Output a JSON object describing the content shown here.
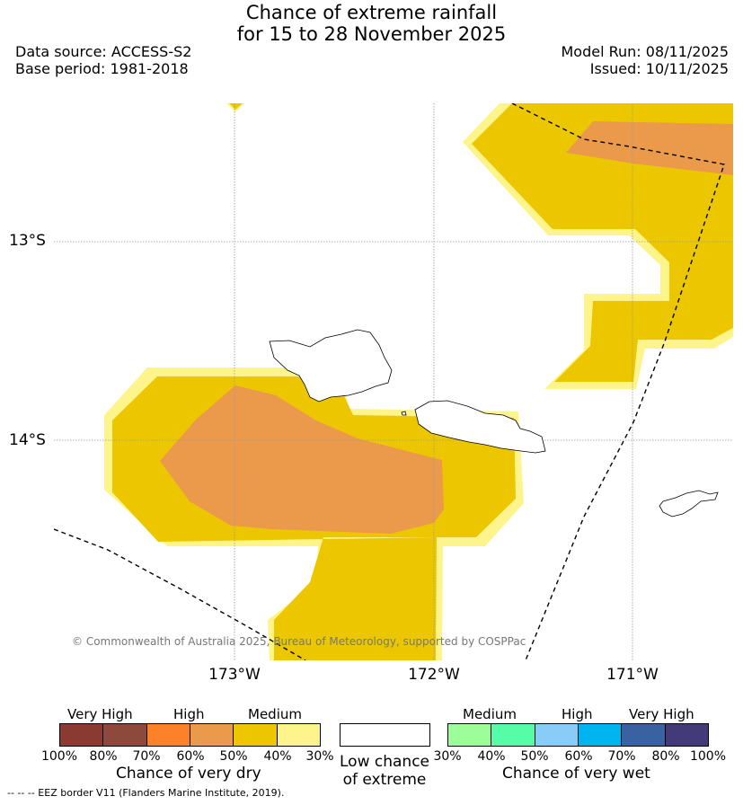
{
  "title_line1": "Chance of extreme rainfall",
  "title_line2": "for 15 to 28 November 2025",
  "data_source": "Data source: ACCESS-S2",
  "base_period": "Base period: 1981-2018",
  "model_run": "Model Run: 08/11/2025",
  "issued": "Issued: 10/11/2025",
  "lat_labels": [
    "13°S",
    "14°S"
  ],
  "lon_labels": [
    "173°W",
    "172°W",
    "171°W"
  ],
  "copyright": "© Commonwealth of Australia 2025, Bureau of Meteorology, supported by COSPPac",
  "legend": {
    "dry": {
      "categories": [
        "Very High",
        "High",
        "Medium"
      ],
      "ticks": [
        "100%",
        "80%",
        "70%",
        "60%",
        "50%",
        "40%",
        "30%"
      ],
      "colors": [
        "#8b3a32",
        "#8d4a3c",
        "#fd8128",
        "#ea9a4a",
        "#ecc700",
        "#fef48c"
      ],
      "title": "Chance of very dry"
    },
    "low": {
      "line1": "Low chance",
      "line2": "of extreme",
      "color": "#ffffff"
    },
    "wet": {
      "categories": [
        "Medium",
        "High",
        "Very High"
      ],
      "ticks": [
        "30%",
        "40%",
        "50%",
        "60%",
        "70%",
        "80%",
        "100%"
      ],
      "colors": [
        "#9dfd99",
        "#55fda7",
        "#89ccf9",
        "#00b4ef",
        "#3a62a0",
        "#433a7a"
      ],
      "title": "Chance of very wet"
    }
  },
  "eez_note": "--  --  -- EEZ border V11 (Flanders Marine Institute, 2019)."
}
